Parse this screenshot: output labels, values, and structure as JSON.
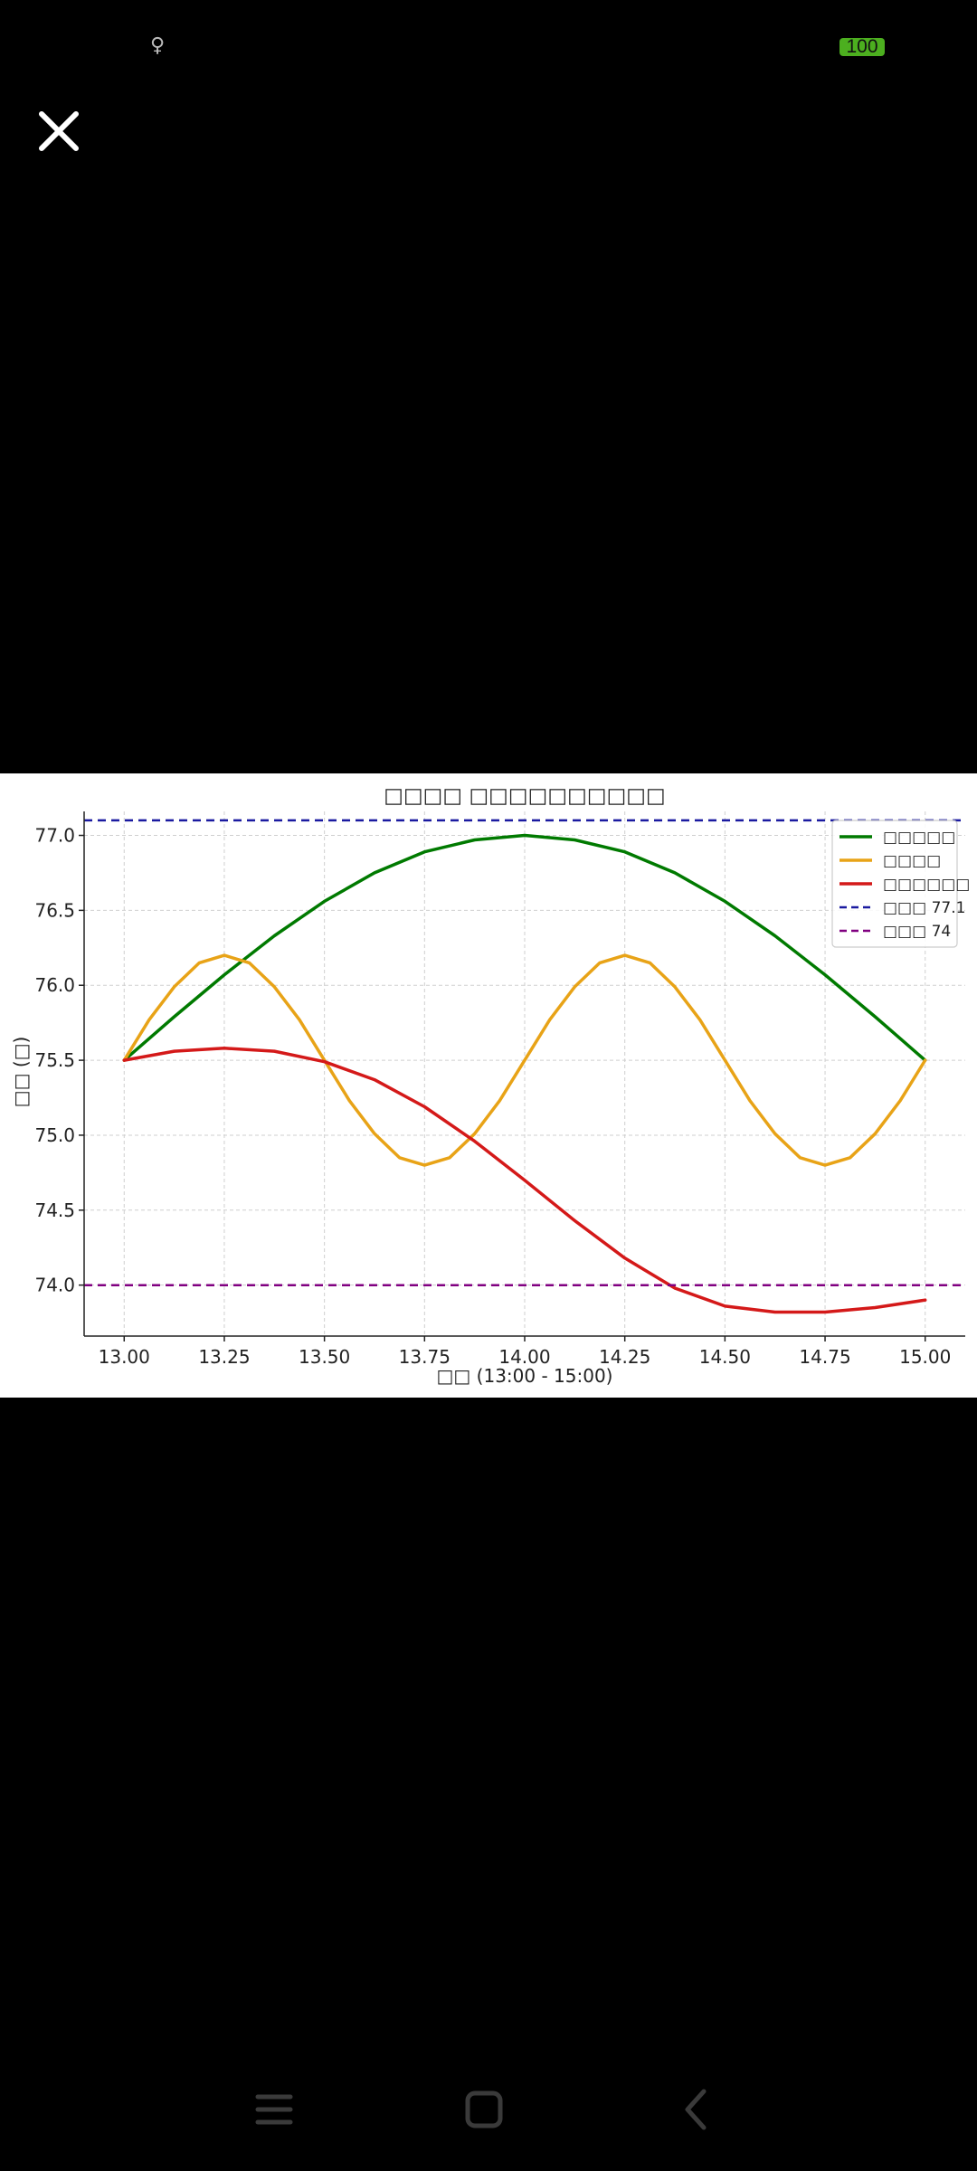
{
  "status_bar": {
    "notification_icon": "person-outline-icon",
    "battery_level": "100",
    "battery_color": "#4caf1f"
  },
  "viewer": {
    "close_icon": "close-icon"
  },
  "nav_bar": {
    "icons": [
      "menu-icon",
      "home-icon",
      "back-icon"
    ]
  },
  "chart_data": {
    "type": "line",
    "title": "□□□□ □□□□□□□□□□",
    "xlabel": "□□ (13:00 - 15:00)",
    "ylabel": "□□ (□)",
    "xlim": [
      12.9,
      15.1
    ],
    "ylim": [
      73.66,
      77.16
    ],
    "xticks": [
      "13.00",
      "13.25",
      "13.50",
      "13.75",
      "14.00",
      "14.25",
      "14.50",
      "14.75",
      "15.00"
    ],
    "yticks": [
      "74.0",
      "74.5",
      "75.0",
      "75.5",
      "76.0",
      "76.5",
      "77.0"
    ],
    "grid": true,
    "legend_position": "top-right",
    "series": [
      {
        "name": "□□□□□",
        "color": "#007a00",
        "style": "solid",
        "x": [
          13.0,
          13.125,
          13.25,
          13.375,
          13.5,
          13.625,
          13.75,
          13.875,
          14.0,
          14.125,
          14.25,
          14.375,
          14.5,
          14.625,
          14.75,
          14.875,
          15.0
        ],
        "y": [
          75.5,
          75.79,
          76.07,
          76.33,
          76.56,
          76.75,
          76.89,
          76.97,
          77.0,
          76.97,
          76.89,
          76.75,
          76.56,
          76.33,
          76.07,
          75.79,
          75.5
        ]
      },
      {
        "name": "□□□□",
        "color": "#e8a317",
        "style": "solid",
        "x": [
          13.0,
          13.0625,
          13.125,
          13.1875,
          13.25,
          13.3125,
          13.375,
          13.4375,
          13.5,
          13.5625,
          13.625,
          13.6875,
          13.75,
          13.8125,
          13.875,
          13.9375,
          14.0,
          14.0625,
          14.125,
          14.1875,
          14.25,
          14.3125,
          14.375,
          14.4375,
          14.5,
          14.5625,
          14.625,
          14.6875,
          14.75,
          14.8125,
          14.875,
          14.9375,
          15.0
        ],
        "y": [
          75.5,
          75.77,
          75.99,
          76.15,
          76.2,
          76.15,
          75.99,
          75.77,
          75.5,
          75.23,
          75.01,
          74.85,
          74.8,
          74.85,
          75.01,
          75.23,
          75.5,
          75.77,
          75.99,
          76.15,
          76.2,
          76.15,
          75.99,
          75.77,
          75.5,
          75.23,
          75.01,
          74.85,
          74.8,
          74.85,
          75.01,
          75.23,
          75.5
        ]
      },
      {
        "name": "□□□□□□",
        "color": "#d41919",
        "style": "solid",
        "x": [
          13.0,
          13.125,
          13.25,
          13.375,
          13.5,
          13.625,
          13.75,
          13.875,
          14.0,
          14.125,
          14.25,
          14.375,
          14.5,
          14.625,
          14.75,
          14.875,
          15.0
        ],
        "y": [
          75.5,
          75.56,
          75.58,
          75.56,
          75.49,
          75.37,
          75.19,
          74.96,
          74.7,
          74.43,
          74.18,
          73.98,
          73.86,
          73.82,
          73.82,
          73.85,
          73.9
        ]
      },
      {
        "name": "□□□ 77.1",
        "color": "#1a1aa0",
        "style": "dashed",
        "x": [
          12.9,
          15.1
        ],
        "y": [
          77.1,
          77.1
        ]
      },
      {
        "name": "□□□ 74",
        "color": "#800080",
        "style": "dashed",
        "x": [
          12.9,
          15.1
        ],
        "y": [
          74.0,
          74.0
        ]
      }
    ]
  }
}
